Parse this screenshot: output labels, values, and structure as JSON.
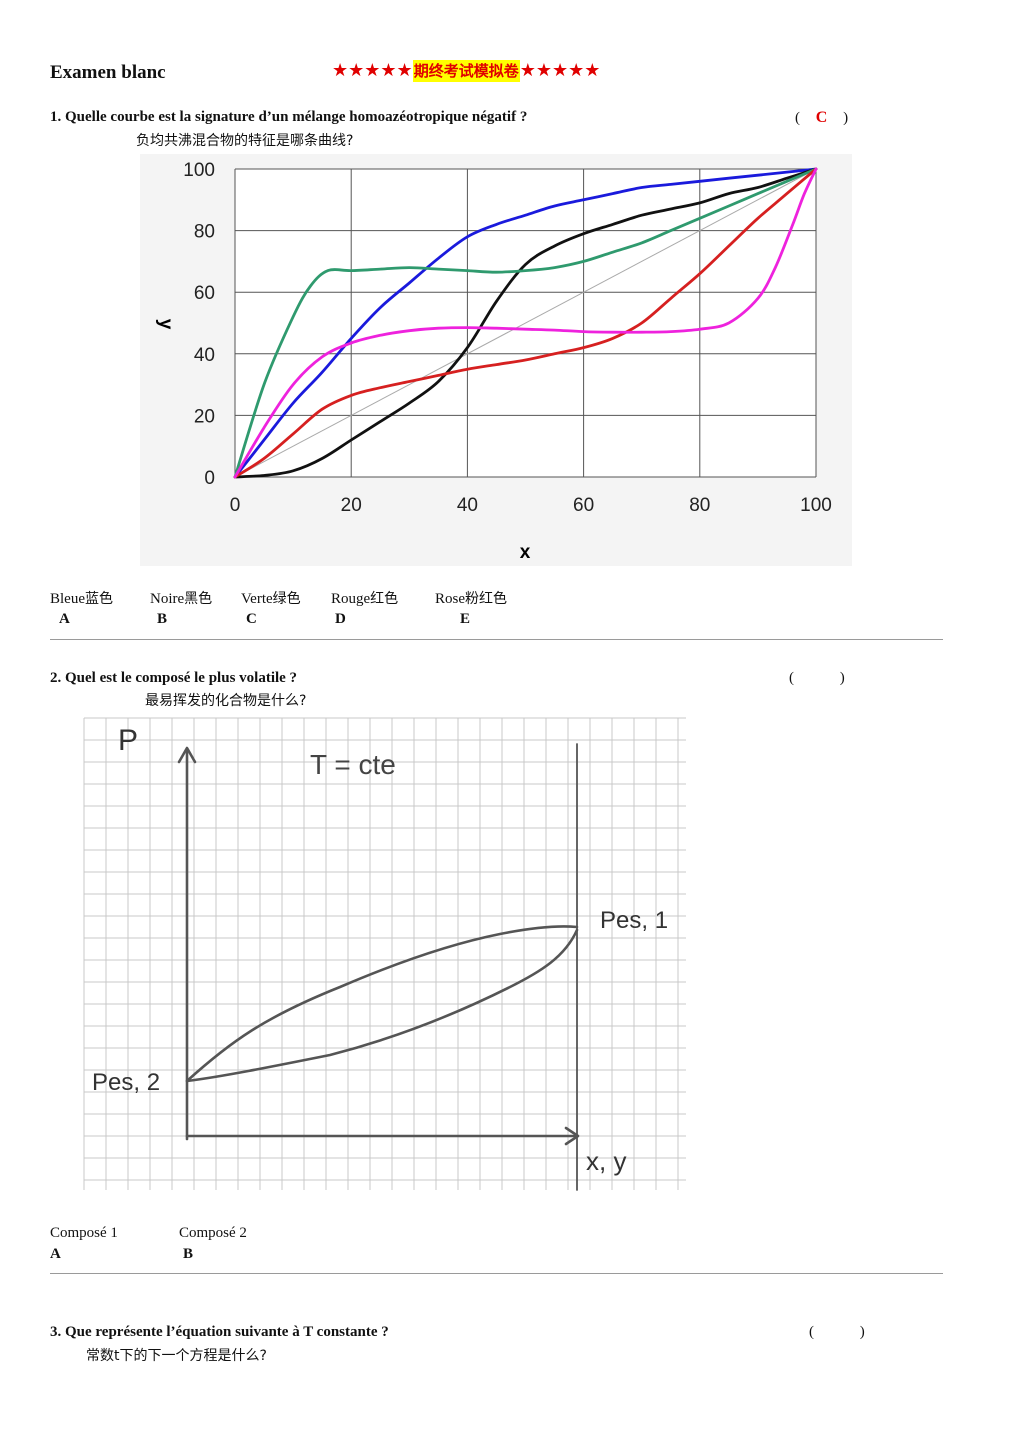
{
  "header": {
    "title": "Examen blanc",
    "stars_left": "★★★★★",
    "banner_text": "期终考试模拟卷",
    "stars_right": "★★★★★"
  },
  "q1": {
    "question": "1. Quelle courbe est la signature d’un mélange homoazéotropique négatif ?",
    "question_zh": "负均共沸混合物的特征是哪条曲线?",
    "paren_open": "(",
    "answer": "C",
    "paren_close": ")",
    "options": [
      {
        "fr": "Bleue",
        "zh": "蓝色",
        "letter": "A"
      },
      {
        "fr": "Noire",
        "zh": "黑色",
        "letter": "B"
      },
      {
        "fr": "Verte",
        "zh": "绿色",
        "letter": "C"
      },
      {
        "fr": "Rouge",
        "zh": "红色",
        "letter": "D"
      },
      {
        "fr": "Rose",
        "zh": "粉红色",
        "letter": "E"
      }
    ]
  },
  "chart_data": {
    "type": "line",
    "xlabel": "x",
    "ylabel": "y",
    "xlim": [
      0,
      100
    ],
    "ylim": [
      0,
      100
    ],
    "xticks": [
      0,
      20,
      40,
      60,
      80,
      100
    ],
    "yticks": [
      0,
      20,
      40,
      60,
      80,
      100
    ],
    "grid": true,
    "diagonal": {
      "x": [
        0,
        100
      ],
      "y": [
        0,
        100
      ],
      "color": "#aaaaaa"
    },
    "series": [
      {
        "color": "#1a1adc",
        "x": [
          0,
          5,
          10,
          15,
          20,
          25,
          30,
          35,
          40,
          45,
          50,
          55,
          60,
          65,
          70,
          75,
          80,
          85,
          90,
          95,
          100
        ],
        "y": [
          0,
          12,
          24,
          34,
          45,
          55,
          63,
          71,
          78,
          82,
          85,
          88,
          90,
          92,
          94,
          95,
          96,
          97,
          98,
          99,
          100
        ]
      },
      {
        "color": "#111111",
        "x": [
          0,
          5,
          10,
          15,
          20,
          25,
          30,
          35,
          40,
          45,
          50,
          55,
          60,
          65,
          70,
          75,
          80,
          85,
          90,
          95,
          100
        ],
        "y": [
          0,
          0.5,
          2,
          6,
          12,
          18,
          24,
          31,
          42,
          57,
          69,
          75,
          79,
          82,
          85,
          87,
          89,
          92,
          94,
          97,
          100
        ]
      },
      {
        "color": "#2f9a6e",
        "x": [
          0,
          5,
          10,
          13,
          16,
          20,
          25,
          30,
          35,
          40,
          45,
          50,
          55,
          60,
          65,
          70,
          75,
          80,
          85,
          90,
          95,
          100
        ],
        "y": [
          0,
          30,
          52,
          62,
          67,
          67,
          67.5,
          68,
          67.5,
          67,
          66.5,
          67,
          68,
          70,
          73,
          76,
          80,
          84,
          88,
          92,
          96,
          100
        ]
      },
      {
        "color": "#d62020",
        "x": [
          0,
          5,
          10,
          15,
          20,
          25,
          30,
          35,
          40,
          45,
          50,
          55,
          60,
          65,
          70,
          75,
          80,
          85,
          90,
          95,
          100
        ],
        "y": [
          0,
          6,
          14,
          22,
          26.5,
          29,
          31,
          33,
          35,
          36.5,
          38,
          40,
          42,
          45,
          50,
          58,
          66,
          75,
          84,
          92,
          100
        ]
      },
      {
        "color": "#ee22dd",
        "x": [
          0,
          5,
          10,
          15,
          20,
          25,
          30,
          35,
          40,
          45,
          50,
          55,
          60,
          65,
          70,
          75,
          80,
          85,
          90,
          93,
          96,
          98,
          100
        ],
        "y": [
          0,
          16,
          30,
          39,
          43.5,
          46,
          47.5,
          48.3,
          48.5,
          48.3,
          48,
          47.7,
          47.2,
          47,
          47,
          47.2,
          48,
          50,
          58,
          68,
          82,
          92,
          100
        ]
      }
    ]
  },
  "q2": {
    "question": "2. Quel est le composé le plus volatile ?",
    "question_zh": "最易挥发的化合物是什么?",
    "paren_open": "(",
    "paren_close": ")",
    "sketch": {
      "axis_p": "P",
      "title": "T = cte",
      "label_p1": "Pes, 1",
      "label_p2": "Pes, 2",
      "axis_xy": "x, y"
    },
    "options": [
      {
        "label": "Composé 1",
        "letter": "A"
      },
      {
        "label": "Composé 2",
        "letter": "B"
      }
    ]
  },
  "q3": {
    "question": "3. Que représente l’équation suivante à T constante ?",
    "question_zh": "常数t下的下一个方程是什么?",
    "paren_open": "(",
    "paren_close": ")"
  }
}
